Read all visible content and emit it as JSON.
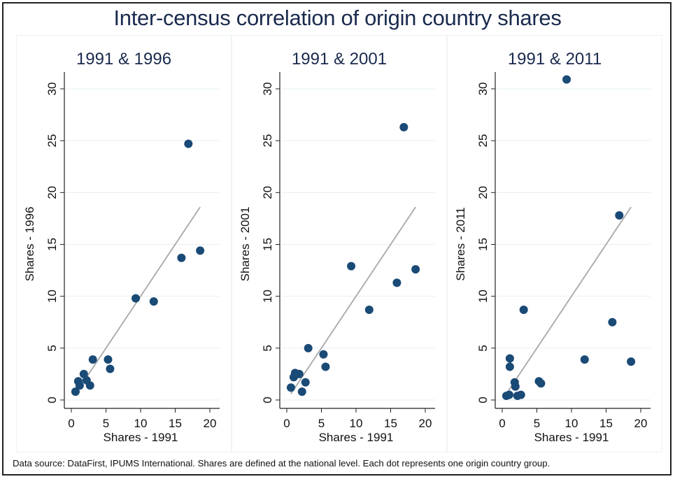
{
  "chart_data": {
    "title": "Inter-census correlation of origin country shares",
    "caption": "Data source: DataFirst, IPUMS International. Shares are defined at the national level. Each dot represents one origin country group.",
    "colors": {
      "marker": "#1a4a76",
      "fit_line": "#a8a8a8",
      "grid": "#e6eff0",
      "title": "#1a2a4e"
    },
    "panels": [
      {
        "type": "scatter",
        "title": "1991 & 1996",
        "xlabel": "Shares - 1991",
        "ylabel": "Shares - 1996",
        "xlim": [
          0,
          20
        ],
        "ylim": [
          0,
          30
        ],
        "xticks": [
          "0",
          "5",
          "10",
          "15",
          "20"
        ],
        "yticks": [
          "0",
          "5",
          "10",
          "15",
          "20",
          "25",
          "30"
        ],
        "grid": true,
        "fit_line": {
          "x": [
            0.6,
            18.6
          ],
          "y": [
            0.6,
            18.6
          ]
        },
        "points": [
          [
            0.6,
            0.8
          ],
          [
            1.0,
            1.8
          ],
          [
            1.2,
            1.4
          ],
          [
            1.8,
            2.5
          ],
          [
            2.2,
            1.9
          ],
          [
            2.7,
            1.4
          ],
          [
            3.1,
            3.9
          ],
          [
            5.3,
            3.9
          ],
          [
            5.6,
            3.0
          ],
          [
            9.3,
            9.8
          ],
          [
            11.9,
            9.5
          ],
          [
            15.9,
            13.7
          ],
          [
            18.6,
            14.4
          ],
          [
            16.9,
            24.7
          ]
        ]
      },
      {
        "type": "scatter",
        "title": "1991 & 2001",
        "xlabel": "Shares - 1991",
        "ylabel": "Shares - 2001",
        "xlim": [
          0,
          20
        ],
        "ylim": [
          0,
          30
        ],
        "xticks": [
          "0",
          "5",
          "10",
          "15",
          "20"
        ],
        "yticks": [
          "0",
          "5",
          "10",
          "15",
          "20",
          "25",
          "30"
        ],
        "grid": true,
        "fit_line": {
          "x": [
            0.6,
            18.6
          ],
          "y": [
            0.6,
            18.6
          ]
        },
        "points": [
          [
            0.6,
            1.2
          ],
          [
            1.0,
            2.2
          ],
          [
            1.2,
            2.6
          ],
          [
            1.5,
            2.5
          ],
          [
            1.8,
            2.5
          ],
          [
            2.2,
            0.8
          ],
          [
            2.7,
            1.7
          ],
          [
            3.1,
            5.0
          ],
          [
            5.3,
            4.4
          ],
          [
            5.6,
            3.2
          ],
          [
            9.3,
            12.9
          ],
          [
            11.9,
            8.7
          ],
          [
            15.9,
            11.3
          ],
          [
            18.6,
            12.6
          ],
          [
            16.9,
            26.3
          ]
        ]
      },
      {
        "type": "scatter",
        "title": "1991 & 2011",
        "xlabel": "Shares - 1991",
        "ylabel": "Shares - 2011",
        "xlim": [
          0,
          20
        ],
        "ylim": [
          0,
          30
        ],
        "xticks": [
          "0",
          "5",
          "10",
          "15",
          "20"
        ],
        "yticks": [
          "0",
          "5",
          "10",
          "15",
          "20",
          "25",
          "30"
        ],
        "grid": true,
        "fit_line": {
          "x": [
            0.6,
            18.6
          ],
          "y": [
            0.6,
            18.6
          ]
        },
        "points": [
          [
            0.6,
            0.4
          ],
          [
            1.0,
            0.5
          ],
          [
            1.1,
            4.0
          ],
          [
            1.1,
            3.2
          ],
          [
            1.8,
            1.7
          ],
          [
            1.9,
            1.3
          ],
          [
            2.2,
            0.4
          ],
          [
            2.7,
            0.5
          ],
          [
            3.1,
            8.7
          ],
          [
            5.3,
            1.8
          ],
          [
            5.6,
            1.6
          ],
          [
            9.3,
            30.9
          ],
          [
            11.9,
            3.9
          ],
          [
            15.9,
            7.5
          ],
          [
            18.6,
            3.7
          ],
          [
            16.9,
            17.8
          ]
        ]
      }
    ]
  }
}
